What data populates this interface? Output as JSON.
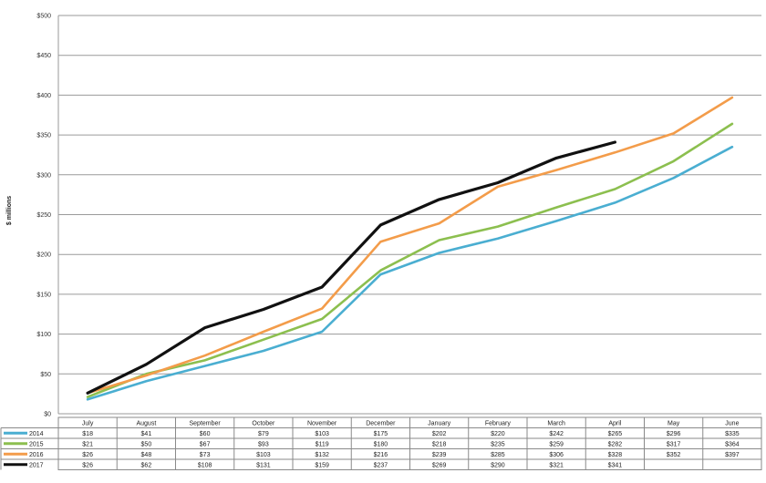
{
  "chart_data": {
    "type": "line",
    "title": "",
    "xlabel": "",
    "ylabel": "$ millions",
    "ylim": [
      0,
      500
    ],
    "yticks": [
      "$0",
      "$50",
      "$100",
      "$150",
      "$200",
      "$250",
      "$300",
      "$350",
      "$400",
      "$450",
      "$500"
    ],
    "grid": true,
    "legend": "table-bottom-left",
    "categories": [
      "July",
      "August",
      "September",
      "October",
      "November",
      "December",
      "January",
      "February",
      "March",
      "April",
      "May",
      "June"
    ],
    "series": [
      {
        "name": "2014",
        "color": "#4aaed1",
        "values": [
          18,
          41,
          60,
          79,
          103,
          175,
          202,
          220,
          242,
          265,
          296,
          335
        ],
        "labels": [
          "$18",
          "$41",
          "$60",
          "$79",
          "$103",
          "$175",
          "$202",
          "$220",
          "$242",
          "$265",
          "$296",
          "$335"
        ]
      },
      {
        "name": "2015",
        "color": "#8cbf4f",
        "values": [
          21,
          50,
          67,
          93,
          119,
          180,
          218,
          235,
          259,
          282,
          317,
          364
        ],
        "labels": [
          "$21",
          "$50",
          "$67",
          "$93",
          "$119",
          "$180",
          "$218",
          "$235",
          "$259",
          "$282",
          "$317",
          "$364"
        ]
      },
      {
        "name": "2016",
        "color": "#f39c4a",
        "values": [
          26,
          48,
          73,
          103,
          132,
          216,
          239,
          285,
          306,
          328,
          352,
          397
        ],
        "labels": [
          "$26",
          "$48",
          "$73",
          "$103",
          "$132",
          "$216",
          "$239",
          "$285",
          "$306",
          "$328",
          "$352",
          "$397"
        ]
      },
      {
        "name": "2017",
        "color": "#111111",
        "values": [
          26,
          62,
          108,
          131,
          159,
          237,
          269,
          290,
          321,
          341,
          null,
          null
        ],
        "labels": [
          "$26",
          "$62",
          "$108",
          "$131",
          "$159",
          "$237",
          "$269",
          "$290",
          "$321",
          "$341",
          "",
          ""
        ]
      }
    ]
  }
}
